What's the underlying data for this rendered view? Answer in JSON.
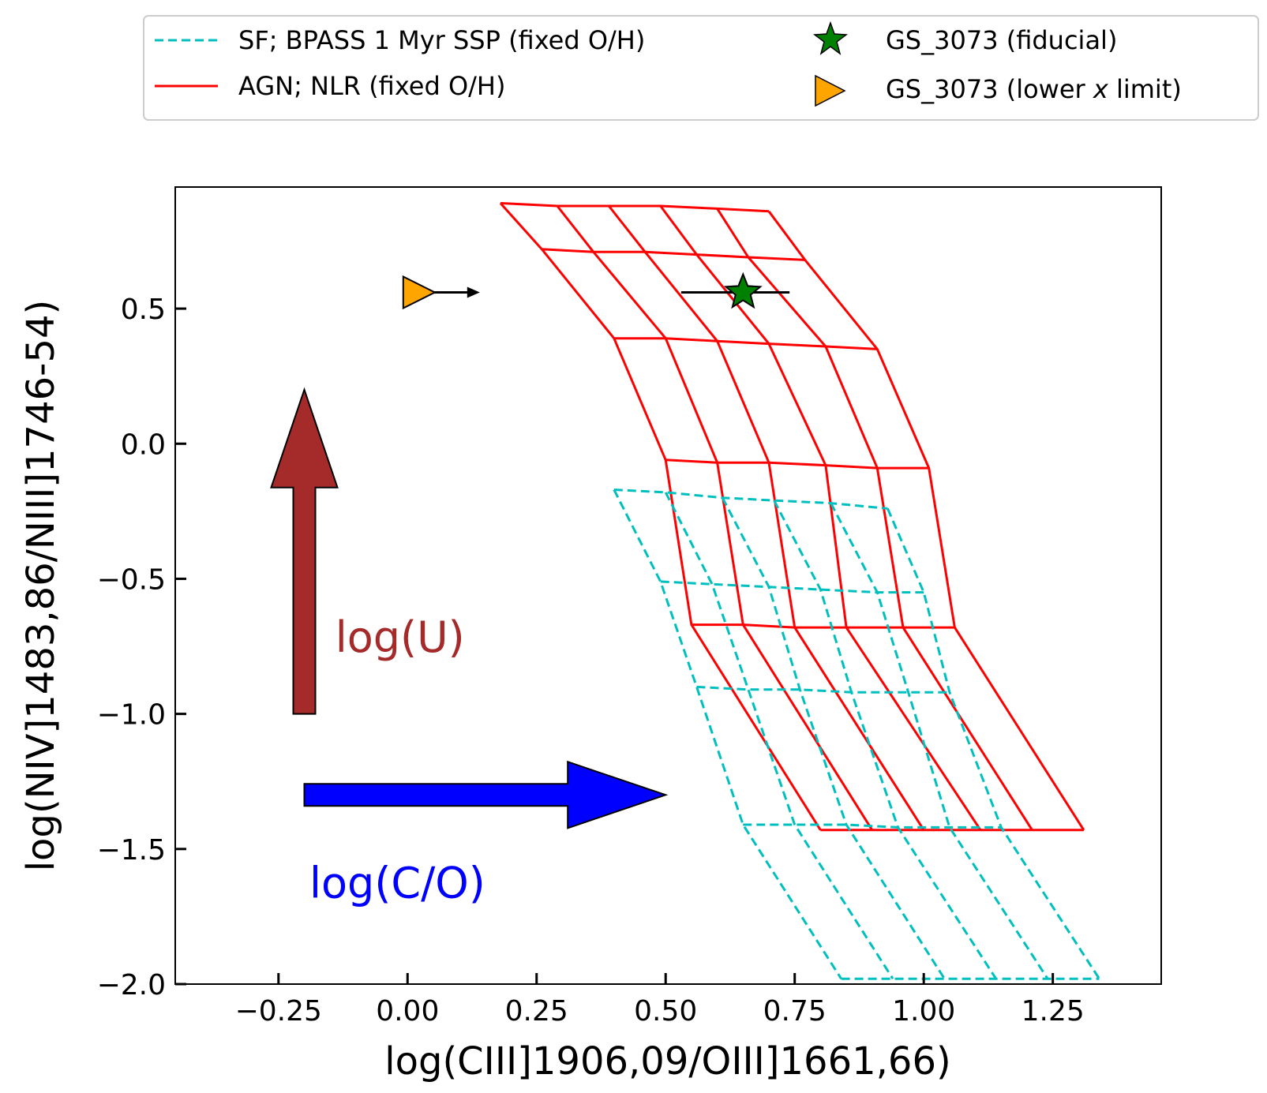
{
  "chart_data": {
    "type": "line",
    "title": "",
    "xlabel": "log(CIII]1906,09/OIII]1661,66)",
    "ylabel": "log(NIV]1483,86/NIII]1746-54)",
    "xlim": [
      -0.45,
      1.46
    ],
    "ylim": [
      -2.0,
      0.95
    ],
    "xticks": [
      -0.25,
      0.0,
      0.25,
      0.5,
      0.75,
      1.0,
      1.25
    ],
    "xtick_labels": [
      "−0.25",
      "0.00",
      "0.25",
      "0.50",
      "0.75",
      "1.00",
      "1.25"
    ],
    "yticks": [
      0.5,
      0.0,
      -0.5,
      -1.0,
      -1.5,
      -2.0
    ],
    "ytick_labels": [
      "0.5",
      "0.0",
      "−0.5",
      "−1.0",
      "−1.5",
      "−2.0"
    ],
    "grid": false,
    "legend": {
      "placement": "above plot",
      "entries": [
        {
          "label": "SF; BPASS 1 Myr SSP (fixed O/H)",
          "marker": "dashed-line",
          "color": "#00BFBF"
        },
        {
          "label": "AGN; NLR (fixed O/H)",
          "marker": "line",
          "color": "#FF0000"
        },
        {
          "label": "GS_3073 (fiducial)",
          "marker": "star",
          "color": "#008000"
        },
        {
          "label_parts": [
            "GS_3073 (lower ",
            "x",
            " limit)"
          ],
          "marker": "right-triangle",
          "color": "#FFA500"
        }
      ]
    },
    "series": [
      {
        "name": "AGN; NLR (fixed O/H)",
        "style": "solid",
        "color": "#FF0000",
        "grid_nodes": [
          [
            [
              0.18,
              0.89
            ],
            [
              0.29,
              0.88
            ],
            [
              0.39,
              0.88
            ],
            [
              0.49,
              0.88
            ],
            [
              0.6,
              0.87
            ],
            [
              0.7,
              0.86
            ]
          ],
          [
            [
              0.26,
              0.72
            ],
            [
              0.36,
              0.71
            ],
            [
              0.46,
              0.71
            ],
            [
              0.56,
              0.7
            ],
            [
              0.66,
              0.69
            ],
            [
              0.77,
              0.68
            ]
          ],
          [
            [
              0.4,
              0.39
            ],
            [
              0.5,
              0.39
            ],
            [
              0.6,
              0.38
            ],
            [
              0.7,
              0.37
            ],
            [
              0.81,
              0.36
            ],
            [
              0.91,
              0.35
            ]
          ],
          [
            [
              0.5,
              -0.06
            ],
            [
              0.6,
              -0.07
            ],
            [
              0.7,
              -0.07
            ],
            [
              0.81,
              -0.08
            ],
            [
              0.91,
              -0.09
            ],
            [
              1.01,
              -0.09
            ]
          ],
          [
            [
              0.55,
              -0.67
            ],
            [
              0.65,
              -0.67
            ],
            [
              0.75,
              -0.68
            ],
            [
              0.85,
              -0.68
            ],
            [
              0.96,
              -0.68
            ],
            [
              1.06,
              -0.68
            ]
          ],
          [
            [
              0.8,
              -1.43
            ],
            [
              0.9,
              -1.43
            ],
            [
              1.0,
              -1.43
            ],
            [
              1.11,
              -1.43
            ],
            [
              1.21,
              -1.43
            ],
            [
              1.31,
              -1.43
            ]
          ]
        ]
      },
      {
        "name": "SF; BPASS 1 Myr SSP (fixed O/H)",
        "style": "dashed",
        "color": "#00BFBF",
        "grid_nodes": [
          [
            [
              0.4,
              -0.17
            ],
            [
              0.5,
              -0.18
            ],
            [
              0.61,
              -0.2
            ],
            [
              0.71,
              -0.21
            ],
            [
              0.82,
              -0.22
            ],
            [
              0.93,
              -0.24
            ]
          ],
          [
            [
              0.49,
              -0.51
            ],
            [
              0.59,
              -0.52
            ],
            [
              0.7,
              -0.53
            ],
            [
              0.8,
              -0.54
            ],
            [
              0.91,
              -0.55
            ],
            [
              1.0,
              -0.55
            ]
          ],
          [
            [
              0.56,
              -0.9
            ],
            [
              0.66,
              -0.91
            ],
            [
              0.76,
              -0.91
            ],
            [
              0.86,
              -0.92
            ],
            [
              0.97,
              -0.92
            ],
            [
              1.05,
              -0.92
            ]
          ],
          [
            [
              0.65,
              -1.41
            ],
            [
              0.75,
              -1.41
            ],
            [
              0.85,
              -1.41
            ],
            [
              0.95,
              -1.42
            ],
            [
              1.05,
              -1.42
            ],
            [
              1.15,
              -1.42
            ]
          ],
          [
            [
              0.84,
              -1.98
            ],
            [
              0.94,
              -1.98
            ],
            [
              1.04,
              -1.98
            ],
            [
              1.14,
              -1.98
            ],
            [
              1.24,
              -1.98
            ],
            [
              1.34,
              -1.98
            ]
          ]
        ]
      }
    ],
    "points": [
      {
        "name": "GS_3073 (fiducial)",
        "x": 0.65,
        "y": 0.56,
        "xerr": [
          0.12,
          0.09
        ],
        "marker": "star",
        "color": "#008000"
      },
      {
        "name": "GS_3073 (lower x limit)",
        "x": 0.01,
        "y": 0.56,
        "marker": "right-triangle",
        "color": "#FFA500",
        "limit_arrow_to_x": 0.14
      }
    ],
    "annotations": [
      {
        "text": "log(U)",
        "color": "#A52A2A",
        "arrow": {
          "from": [
            -0.2,
            -1.0
          ],
          "to": [
            -0.2,
            0.2
          ]
        },
        "text_at": [
          -0.14,
          -0.77
        ]
      },
      {
        "text": "log(C/O)",
        "color": "#0000FF",
        "arrow": {
          "from": [
            -0.2,
            -1.3
          ],
          "to": [
            0.5,
            -1.3
          ]
        },
        "text_at": [
          -0.19,
          -1.68
        ]
      }
    ]
  }
}
